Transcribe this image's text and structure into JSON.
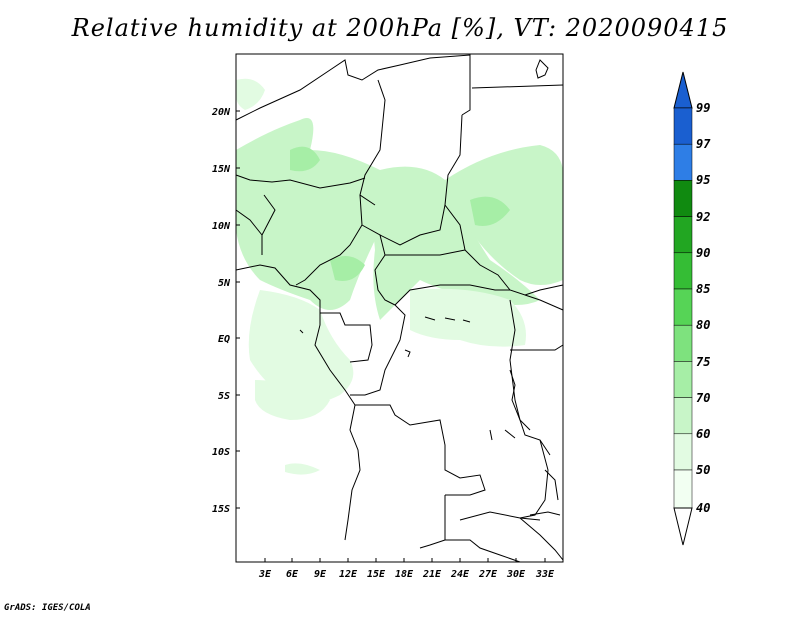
{
  "title": "Relative humidity at 200hPa [%], VT: 2020090415",
  "footer": "GrADS: IGES/COLA",
  "map": {
    "lat_labels": [
      "20N",
      "15N",
      "10N",
      "5N",
      "EQ",
      "5S",
      "10S",
      "15S"
    ],
    "lon_labels": [
      "3E",
      "6E",
      "9E",
      "12E",
      "15E",
      "18E",
      "21E",
      "24E",
      "27E",
      "30E",
      "33E"
    ]
  },
  "colorbar": {
    "levels": [
      "99",
      "97",
      "95",
      "92",
      "90",
      "85",
      "80",
      "75",
      "70",
      "60",
      "50",
      "40"
    ],
    "colors": [
      "#1a5fd0",
      "#2e7ee6",
      "#4b9ff0",
      "#108a10",
      "#22a622",
      "#35bd35",
      "#56d456",
      "#7ee27e",
      "#a6eea6",
      "#c8f5c8",
      "#e2fbe2",
      "#f2fff2"
    ]
  }
}
